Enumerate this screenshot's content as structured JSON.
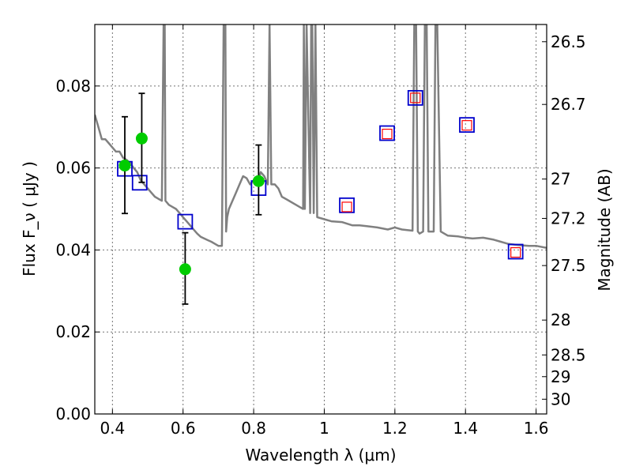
{
  "chart_data": {
    "type": "scatter",
    "xlabel": "Wavelength λ (μm)",
    "ylabel": "Flux F_ν ( μJy )",
    "right_ylabel": "Magnitude (AB)",
    "xlim": [
      0.35,
      1.63
    ],
    "ylim": [
      0.0,
      0.095
    ],
    "grid": true,
    "x_ticks": [
      0.4,
      0.6,
      0.8,
      1.0,
      1.2,
      1.4,
      1.6
    ],
    "x_tick_labels": [
      "0.4",
      "0.6",
      "0.8",
      "1",
      "1.2",
      "1.4",
      "1.6"
    ],
    "y_ticks": [
      0.0,
      0.02,
      0.04,
      0.06,
      0.08
    ],
    "y_tick_labels": [
      "0.00",
      "0.02",
      "0.04",
      "0.06",
      "0.08"
    ],
    "mag_ticks": [
      {
        "label": "26.5",
        "flux": 0.0908
      },
      {
        "label": "26.7",
        "flux": 0.0755
      },
      {
        "label": "27",
        "flux": 0.0573
      },
      {
        "label": "27.2",
        "flux": 0.0477
      },
      {
        "label": "27.5",
        "flux": 0.0362
      },
      {
        "label": "28",
        "flux": 0.0229
      },
      {
        "label": "28.5",
        "flux": 0.0144
      },
      {
        "label": "29",
        "flux": 0.0091
      },
      {
        "label": "30",
        "flux": 0.0036
      }
    ],
    "series": [
      {
        "kind": "line",
        "color": "#808080",
        "x": [
          0.35,
          0.36,
          0.37,
          0.38,
          0.39,
          0.4,
          0.41,
          0.42,
          0.43,
          0.44,
          0.45,
          0.46,
          0.47,
          0.48,
          0.49,
          0.5,
          0.51,
          0.52,
          0.53,
          0.54,
          0.545,
          0.548,
          0.55,
          0.56,
          0.57,
          0.58,
          0.59,
          0.6,
          0.61,
          0.62,
          0.63,
          0.64,
          0.65,
          0.66,
          0.67,
          0.68,
          0.69,
          0.7,
          0.71,
          0.715,
          0.72,
          0.722,
          0.725,
          0.73,
          0.74,
          0.75,
          0.76,
          0.77,
          0.78,
          0.79,
          0.8,
          0.81,
          0.82,
          0.83,
          0.84,
          0.845,
          0.85,
          0.86,
          0.87,
          0.88,
          0.9,
          0.92,
          0.94,
          0.942,
          0.945,
          0.95,
          0.96,
          0.963,
          0.966,
          0.97,
          0.975,
          0.98,
          1.0,
          1.02,
          1.05,
          1.08,
          1.1,
          1.12,
          1.15,
          1.18,
          1.2,
          1.22,
          1.25,
          1.255,
          1.26,
          1.265,
          1.27,
          1.28,
          1.285,
          1.29,
          1.295,
          1.3,
          1.31,
          1.315,
          1.32,
          1.33,
          1.35,
          1.38,
          1.4,
          1.42,
          1.45,
          1.48,
          1.5,
          1.52,
          1.55,
          1.58,
          1.6,
          1.63
        ],
        "y": [
          0.073,
          0.07,
          0.067,
          0.067,
          0.066,
          0.065,
          0.064,
          0.064,
          0.0625,
          0.062,
          0.0612,
          0.06,
          0.059,
          0.057,
          0.056,
          0.055,
          0.054,
          0.053,
          0.0525,
          0.052,
          0.095,
          0.095,
          0.052,
          0.051,
          0.0505,
          0.05,
          0.049,
          0.048,
          0.047,
          0.046,
          0.045,
          0.044,
          0.0432,
          0.0428,
          0.0424,
          0.042,
          0.0415,
          0.041,
          0.041,
          0.095,
          0.095,
          0.0445,
          0.048,
          0.05,
          0.052,
          0.054,
          0.056,
          0.058,
          0.0575,
          0.056,
          0.057,
          0.056,
          0.059,
          0.058,
          0.056,
          0.095,
          0.056,
          0.056,
          0.055,
          0.053,
          0.052,
          0.051,
          0.05,
          0.095,
          0.05,
          0.095,
          0.049,
          0.095,
          0.095,
          0.049,
          0.095,
          0.048,
          0.0475,
          0.047,
          0.0468,
          0.046,
          0.046,
          0.0458,
          0.0455,
          0.045,
          0.0455,
          0.045,
          0.0447,
          0.095,
          0.095,
          0.0445,
          0.044,
          0.0445,
          0.095,
          0.095,
          0.0445,
          0.0445,
          0.0445,
          0.095,
          0.095,
          0.0445,
          0.0435,
          0.0433,
          0.043,
          0.0428,
          0.043,
          0.0425,
          0.042,
          0.0415,
          0.0412,
          0.041,
          0.041,
          0.0405
        ]
      },
      {
        "kind": "markers",
        "marker": "open-square",
        "color": "#0000cc",
        "x": [
          0.435,
          0.477,
          0.606,
          0.814,
          1.064,
          1.178,
          1.258,
          1.404,
          1.542
        ],
        "y": [
          0.0598,
          0.0564,
          0.0469,
          0.0551,
          0.0509,
          0.0685,
          0.0771,
          0.0705,
          0.0396
        ]
      },
      {
        "kind": "markers",
        "marker": "open-square-small",
        "color": "#ff0000",
        "x": [
          1.064,
          1.178,
          1.258,
          1.404,
          1.542
        ],
        "y": [
          0.0505,
          0.0683,
          0.0771,
          0.0704,
          0.0394
        ]
      },
      {
        "kind": "markers",
        "marker": "filled-circle",
        "color": "#00cc00",
        "x": [
          0.435,
          0.483,
          0.606,
          0.814
        ],
        "y": [
          0.0606,
          0.0672,
          0.0353,
          0.0568
        ],
        "yerr_low": [
          0.0489,
          0.0565,
          0.0268,
          0.0486
        ],
        "yerr_high": [
          0.0725,
          0.0782,
          0.0442,
          0.0656
        ]
      }
    ]
  }
}
